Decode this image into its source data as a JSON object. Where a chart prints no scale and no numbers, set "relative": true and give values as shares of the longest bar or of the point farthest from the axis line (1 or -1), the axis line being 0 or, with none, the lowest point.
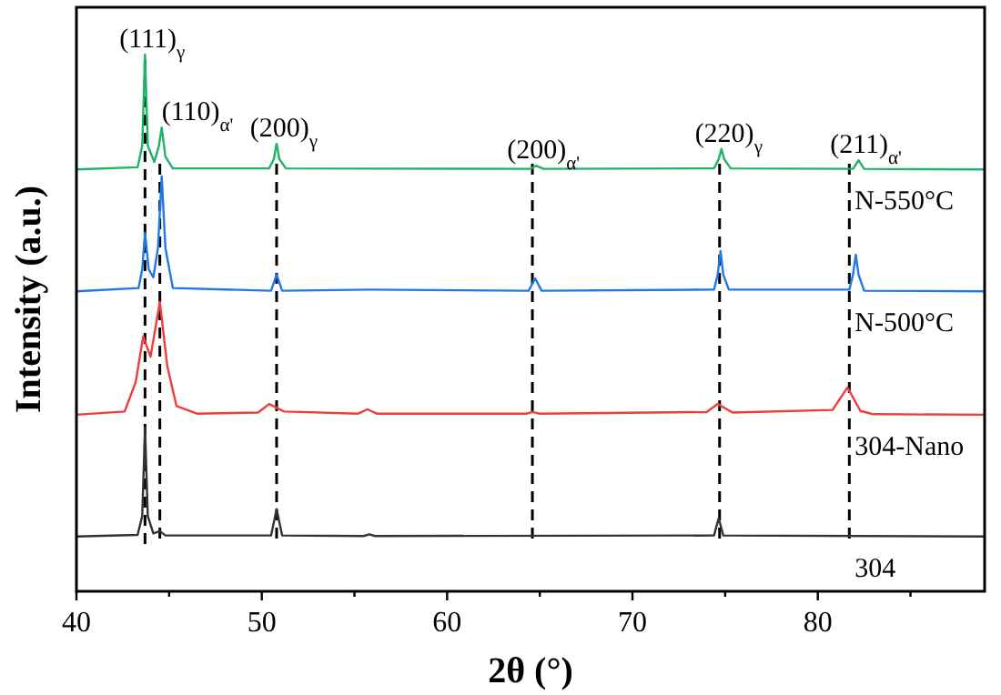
{
  "chart_data": {
    "type": "line",
    "relative": true,
    "xlabel": "2θ (°)",
    "ylabel": "Intensity (a.u.)",
    "xlim": [
      40,
      89
    ],
    "xticks": [
      40,
      {
        "value": 45,
        "label": null
      },
      50,
      {
        "value": 55,
        "label": null
      },
      60,
      {
        "value": 65,
        "label": null
      },
      70,
      {
        "value": 75,
        "label": null
      },
      80,
      {
        "value": 85,
        "label": null
      }
    ],
    "grid": false,
    "marker": "none",
    "line_style": "solid",
    "series": [
      {
        "name": "N-550°C",
        "color": "#1db36b",
        "x": [
          40,
          43.3,
          43.55,
          43.7,
          43.85,
          44.2,
          44.45,
          44.6,
          44.8,
          45.2,
          50.4,
          50.65,
          50.8,
          50.95,
          51.3,
          64.5,
          64.8,
          65.2,
          74.4,
          74.65,
          74.8,
          74.95,
          75.3,
          81.9,
          82.2,
          82.5,
          89
        ],
        "values": [
          0.786,
          0.79,
          0.83,
          1.0,
          0.83,
          0.8,
          0.83,
          0.864,
          0.81,
          0.788,
          0.788,
          0.805,
          0.834,
          0.805,
          0.788,
          0.787,
          0.793,
          0.787,
          0.788,
          0.805,
          0.824,
          0.805,
          0.788,
          0.787,
          0.803,
          0.787,
          0.786
        ]
      },
      {
        "name": "N-500°C",
        "color": "#1f78e6",
        "x": [
          40,
          43.35,
          43.55,
          43.7,
          43.9,
          44.15,
          44.4,
          44.6,
          44.8,
          45.2,
          50.5,
          50.8,
          51.1,
          55.8,
          64.4,
          64.75,
          65.1,
          74.4,
          74.6,
          74.75,
          74.9,
          75.2,
          81.7,
          81.9,
          82.05,
          82.2,
          82.5,
          89
        ],
        "values": [
          0.559,
          0.565,
          0.6,
          0.668,
          0.6,
          0.585,
          0.64,
          0.773,
          0.64,
          0.565,
          0.56,
          0.59,
          0.56,
          0.562,
          0.56,
          0.583,
          0.56,
          0.562,
          0.59,
          0.634,
          0.59,
          0.562,
          0.562,
          0.59,
          0.627,
          0.59,
          0.56,
          0.559
        ]
      },
      {
        "name": "304-Nano",
        "color": "#f03c3c",
        "x": [
          40,
          42.6,
          43.2,
          43.6,
          44.0,
          44.5,
          44.9,
          45.4,
          46.5,
          49.8,
          50.4,
          51.2,
          55.2,
          55.7,
          56.2,
          64.3,
          64.6,
          65,
          74.0,
          74.6,
          75.4,
          80.8,
          81.6,
          82.3,
          83,
          89
        ],
        "values": [
          0.329,
          0.335,
          0.39,
          0.475,
          0.437,
          0.539,
          0.42,
          0.345,
          0.331,
          0.333,
          0.349,
          0.335,
          0.331,
          0.339,
          0.331,
          0.331,
          0.334,
          0.331,
          0.334,
          0.349,
          0.333,
          0.338,
          0.38,
          0.336,
          0.33,
          0.329
        ]
      },
      {
        "name": "304",
        "color": "#333333",
        "x": [
          40,
          43.3,
          43.55,
          43.7,
          43.85,
          44.15,
          44.5,
          44.8,
          50.5,
          50.8,
          51.1,
          55.5,
          55.8,
          56.1,
          74.4,
          74.65,
          74.9,
          89
        ],
        "values": [
          0.102,
          0.105,
          0.14,
          0.305,
          0.14,
          0.108,
          0.112,
          0.104,
          0.104,
          0.153,
          0.104,
          0.103,
          0.106,
          0.103,
          0.104,
          0.136,
          0.104,
          0.102
        ]
      }
    ],
    "ref_lines": [
      {
        "axis": "x",
        "value": 43.7,
        "color": "#000000",
        "line_style": "dashed"
      },
      {
        "axis": "x",
        "value": 44.5,
        "color": "#000000",
        "line_style": "dashed"
      },
      {
        "axis": "x",
        "value": 50.8,
        "color": "#000000",
        "line_style": "dashed"
      },
      {
        "axis": "x",
        "value": 64.6,
        "color": "#000000",
        "line_style": "dashed"
      },
      {
        "axis": "x",
        "value": 74.7,
        "color": "#000000",
        "line_style": "dashed"
      },
      {
        "axis": "x",
        "value": 81.7,
        "color": "#000000",
        "line_style": "dashed"
      }
    ],
    "annotations": [
      {
        "text": "(111)$_{γ}$",
        "x": 43.7,
        "y": 1.0
      },
      {
        "text": "(110)$_{α'}$",
        "x": 44.6,
        "y": 0.864
      },
      {
        "text": "(200)$_{γ}$",
        "x": 50.8,
        "y": 0.834
      },
      {
        "text": "(200)$_{α'}$",
        "x": 64.8,
        "y": 0.793
      },
      {
        "text": "(220)$_{γ}$",
        "x": 74.8,
        "y": 0.824
      },
      {
        "text": "(211)$_{α'}$",
        "x": 82.2,
        "y": 0.803
      }
    ]
  }
}
